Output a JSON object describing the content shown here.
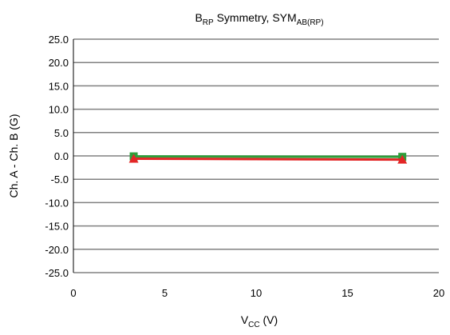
{
  "chart_data": {
    "type": "line",
    "title": {
      "main": "B",
      "main_sub": "RP",
      "rest": " Symmetry, SYM",
      "rest_sub": "AB(RP)"
    },
    "xlabel": {
      "main": "V",
      "sub": "CC",
      "rest": " (V)"
    },
    "ylabel": "Ch. A - Ch. B (G)",
    "xlim": [
      0,
      20
    ],
    "ylim": [
      -25,
      25
    ],
    "x_ticks": [
      0,
      5,
      10,
      15,
      20
    ],
    "y_ticks": [
      25,
      20,
      15,
      10,
      5,
      0,
      -5,
      -10,
      -15,
      -20,
      -25
    ],
    "x_tick_labels": [
      "0",
      "5",
      "10",
      "15",
      "20"
    ],
    "y_tick_labels": [
      "25.0",
      "20.0",
      "15.0",
      "10.0",
      "5.0",
      "0.0",
      "-5.0",
      "-10.0",
      "-15.0",
      "-20.0",
      "-25.0"
    ],
    "grid": true,
    "legend": "none",
    "series": [
      {
        "x": [
          3.3,
          18
        ],
        "y": [
          -0.1,
          -0.2
        ],
        "color": "#2e9e3a",
        "marker": "square"
      },
      {
        "x": [
          3.3,
          18
        ],
        "y": [
          -0.6,
          -0.8
        ],
        "color": "#e32626",
        "marker": "triangle"
      }
    ]
  }
}
